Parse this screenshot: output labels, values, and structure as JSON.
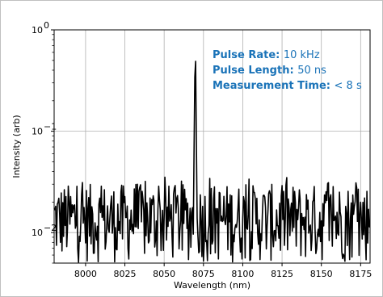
{
  "chart_data": {
    "type": "line",
    "xlabel": "Wavelength (nm)",
    "ylabel": "Intensity (arb)",
    "xlim": [
      7980,
      8181
    ],
    "x_ticks": [
      8000,
      8025,
      8050,
      8075,
      8100,
      8125,
      8150,
      8175
    ],
    "y_scale": "log",
    "ylim": [
      0.005,
      1.0
    ],
    "y_ticks": [
      {
        "value": 1,
        "base": "10",
        "exp": "0"
      },
      {
        "value": 0.1,
        "base": "10",
        "exp": "−1"
      },
      {
        "value": 0.01,
        "base": "10",
        "exp": "−2"
      }
    ],
    "grid": true,
    "line_color": "#000000",
    "annotation_color": "#1a73b8",
    "annotations": [
      {
        "label": "Pulse Rate:",
        "value": "10 kHz"
      },
      {
        "label": "Pulse Length:",
        "value": "50 ns"
      },
      {
        "label": "Measurement Time:",
        "value": "< 8 s"
      }
    ],
    "series": [
      {
        "peak": {
          "x": 8069.8,
          "y": 1.0
        },
        "noise_level": {
          "min": 0.005,
          "max": 0.03
        },
        "x_step": 0.5,
        "x": [
          7980,
          8181
        ]
      }
    ]
  }
}
